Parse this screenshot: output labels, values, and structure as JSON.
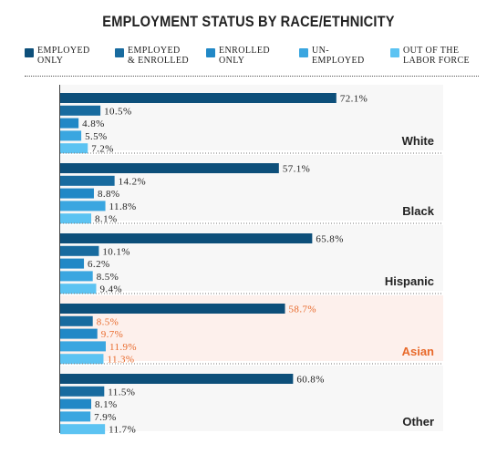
{
  "title": "EMPLOYMENT STATUS BY RACE/ETHNICITY",
  "legend": [
    {
      "label": "EMPLOYED\nONLY",
      "color": "#0d4f7a"
    },
    {
      "label": "EMPLOYED\n& ENROLLED",
      "color": "#186b9f"
    },
    {
      "label": "ENROLLED\nONLY",
      "color": "#2188c6"
    },
    {
      "label": "UN-\nEMPLOYED",
      "color": "#3aa6e0"
    },
    {
      "label": "OUT OF THE\nLABOR FORCE",
      "color": "#5cc3f2"
    }
  ],
  "colors": {
    "highlight_text": "#e8692a",
    "highlight_bg": "#fdf0ec",
    "band_bg": "#f7f7f7",
    "text": "#222222"
  },
  "chart_data": {
    "type": "bar",
    "orientation": "horizontal",
    "title": "EMPLOYMENT STATUS BY RACE/ETHNICITY",
    "xlim": [
      0,
      100
    ],
    "grid": false,
    "legend_position": "top",
    "series": [
      "EMPLOYED ONLY",
      "EMPLOYED & ENROLLED",
      "ENROLLED ONLY",
      "UN-EMPLOYED",
      "OUT OF THE LABOR FORCE"
    ],
    "groups": [
      {
        "name": "White",
        "values": [
          72.1,
          10.5,
          4.8,
          5.5,
          7.2
        ],
        "labels": [
          "72.1%",
          "10.5%",
          "4.8%",
          "5.5%",
          "7.2%"
        ],
        "highlight": false
      },
      {
        "name": "Black",
        "values": [
          57.1,
          14.2,
          8.8,
          11.8,
          8.1
        ],
        "labels": [
          "57.1%",
          "14.2%",
          "8.8%",
          "11.8%",
          "8.1%"
        ],
        "highlight": false
      },
      {
        "name": "Hispanic",
        "values": [
          65.8,
          10.1,
          6.2,
          8.5,
          9.4
        ],
        "labels": [
          "65.8%",
          "10.1%",
          "6.2%",
          "8.5%",
          "9.4%"
        ],
        "highlight": false
      },
      {
        "name": "Asian",
        "values": [
          58.7,
          8.5,
          9.7,
          11.9,
          11.3
        ],
        "labels": [
          "58.7%",
          "8.5%",
          "9.7%",
          "11.9%",
          "11.3%"
        ],
        "highlight": true
      },
      {
        "name": "Other",
        "values": [
          60.8,
          11.5,
          8.1,
          7.9,
          11.7
        ],
        "labels": [
          "60.8%",
          "11.5%",
          "8.1%",
          "7.9%",
          "11.7%"
        ],
        "highlight": false
      }
    ]
  }
}
